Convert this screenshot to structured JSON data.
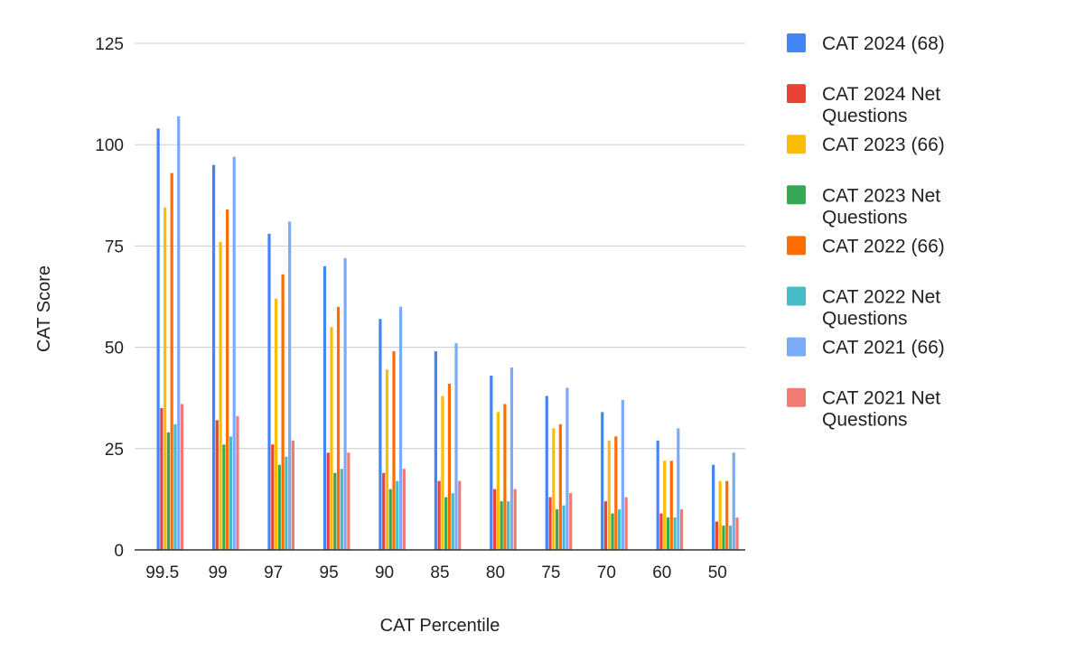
{
  "chart_data": {
    "type": "bar",
    "title": "",
    "xlabel": "CAT Percentile",
    "ylabel": "CAT Score",
    "ylim": [
      0,
      125
    ],
    "yticks": [
      0,
      25,
      50,
      75,
      100,
      125
    ],
    "ytick_labels": [
      "0",
      "25",
      "50",
      "75",
      "100",
      "125"
    ],
    "grid": true,
    "legend_position": "right",
    "categories": [
      "99.5",
      "99",
      "97",
      "95",
      "90",
      "85",
      "80",
      "75",
      "70",
      "60",
      "50"
    ],
    "series": [
      {
        "name": "CAT 2024 (68)",
        "legend_lines": [
          "CAT 2024 (68)"
        ],
        "color": "#4285f4",
        "values": [
          104,
          95,
          78,
          70,
          57,
          49,
          43,
          38,
          34,
          27,
          21
        ]
      },
      {
        "name": "CAT 2024 Net Questions",
        "legend_lines": [
          "CAT 2024 Net",
          "Questions"
        ],
        "color": "#ea4335",
        "values": [
          35,
          32,
          26,
          24,
          19,
          17,
          15,
          13,
          12,
          9,
          7
        ]
      },
      {
        "name": "CAT 2023 (66)",
        "legend_lines": [
          "CAT 2023 (66)"
        ],
        "color": "#fbbc04",
        "values": [
          84.5,
          76,
          62,
          55,
          44.5,
          38,
          34,
          30,
          27,
          22,
          17
        ]
      },
      {
        "name": "CAT 2023 Net Questions",
        "legend_lines": [
          "CAT 2023 Net",
          "Questions"
        ],
        "color": "#34a853",
        "values": [
          29,
          26,
          21,
          19,
          15,
          13,
          12,
          10,
          9,
          8,
          6
        ]
      },
      {
        "name": "CAT 2022 (66)",
        "legend_lines": [
          "CAT 2022 (66)"
        ],
        "color": "#ff6d01",
        "values": [
          93,
          84,
          68,
          60,
          49,
          41,
          36,
          31,
          28,
          22,
          17
        ]
      },
      {
        "name": "CAT 2022 Net Questions",
        "legend_lines": [
          "CAT 2022 Net",
          "Questions"
        ],
        "color": "#46bdc6",
        "values": [
          31,
          28,
          23,
          20,
          17,
          14,
          12,
          11,
          10,
          8,
          6
        ]
      },
      {
        "name": "CAT 2021 (66)",
        "legend_lines": [
          "CAT 2021 (66)"
        ],
        "color": "#7baaf7",
        "values": [
          107,
          97,
          81,
          72,
          60,
          51,
          45,
          40,
          37,
          30,
          24
        ]
      },
      {
        "name": "CAT 2021 Net Questions",
        "legend_lines": [
          "CAT 2021 Net",
          "Questions"
        ],
        "color": "#f07b72",
        "values": [
          36,
          33,
          27,
          24,
          20,
          17,
          15,
          14,
          13,
          10,
          8
        ]
      }
    ]
  }
}
